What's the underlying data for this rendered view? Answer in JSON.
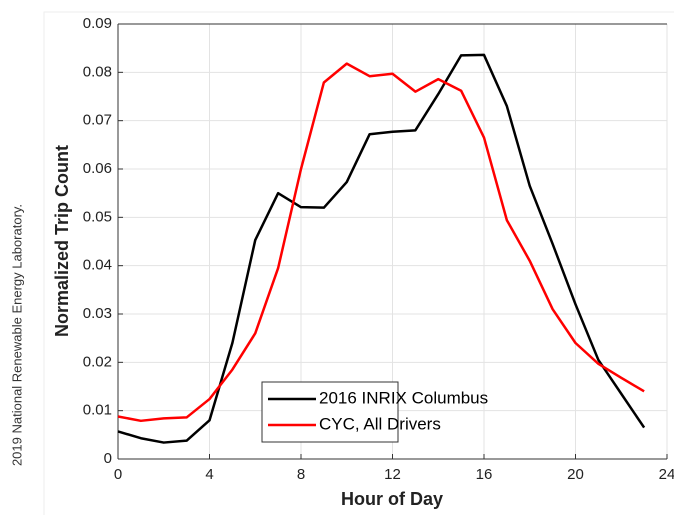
{
  "source": "2019 National Renewable Energy Laboratory.",
  "chart_data": {
    "type": "line",
    "xlabel": "Hour of Day",
    "ylabel": "Normalized Trip Count",
    "x": [
      0,
      1,
      2,
      3,
      4,
      5,
      6,
      7,
      8,
      9,
      10,
      11,
      12,
      13,
      14,
      15,
      16,
      17,
      18,
      19,
      20,
      21,
      22,
      23
    ],
    "series": [
      {
        "name": "2016 INRIX Columbus",
        "color": "#000000",
        "values": [
          0.0057,
          0.0043,
          0.0034,
          0.0038,
          0.008,
          0.024,
          0.0453,
          0.055,
          0.0521,
          0.052,
          0.0573,
          0.0672,
          0.0677,
          0.068,
          0.0755,
          0.0835,
          0.0836,
          0.073,
          0.0565,
          0.0445,
          0.032,
          0.0205,
          0.0135,
          0.0065
        ]
      },
      {
        "name": "CYC, All Drivers",
        "color": "#ff0000",
        "values": [
          0.0088,
          0.0079,
          0.0084,
          0.0086,
          0.0124,
          0.0185,
          0.026,
          0.0395,
          0.06,
          0.0779,
          0.0818,
          0.0792,
          0.0797,
          0.076,
          0.0786,
          0.0762,
          0.0665,
          0.0494,
          0.041,
          0.031,
          0.024,
          0.0197,
          0.0168,
          0.014
        ]
      }
    ],
    "xlim": [
      0,
      24
    ],
    "xticks": [
      0,
      4,
      8,
      12,
      16,
      20,
      24
    ],
    "ylim": [
      0,
      0.09
    ],
    "yticks": [
      0,
      0.01,
      0.02,
      0.03,
      0.04,
      0.05,
      0.06,
      0.07,
      0.08,
      0.09
    ],
    "grid": true,
    "legend": "lower center"
  }
}
